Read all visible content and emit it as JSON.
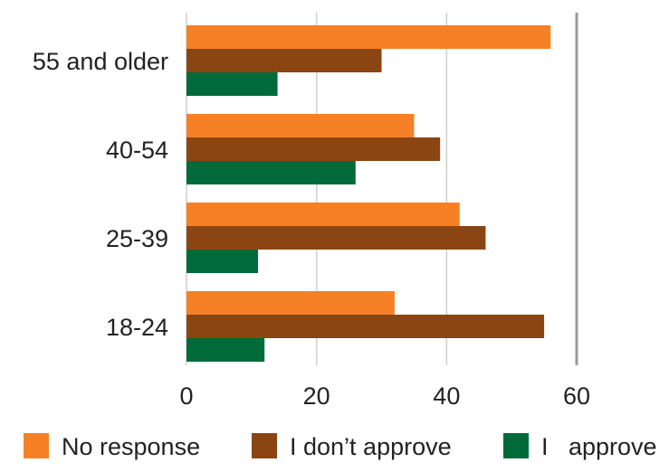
{
  "chart_data": {
    "type": "bar",
    "orientation": "horizontal",
    "title": "",
    "xlabel": "",
    "ylabel": "",
    "categories": [
      "55 and older",
      "40-54",
      "25-39",
      "18-24"
    ],
    "series": [
      {
        "name": "No response",
        "color": "#f58025",
        "values": [
          56,
          35,
          42,
          32
        ]
      },
      {
        "name": "I don’t approve",
        "color": "#8b4513",
        "values": [
          30,
          39,
          46,
          55
        ]
      },
      {
        "name": "I   approve",
        "color": "#006a3a",
        "values": [
          14,
          26,
          11,
          12
        ]
      }
    ],
    "xlim": [
      0,
      60
    ],
    "xticks": [
      "0",
      "20",
      "40",
      "60"
    ],
    "grid": true,
    "legend_position": "bottom"
  }
}
